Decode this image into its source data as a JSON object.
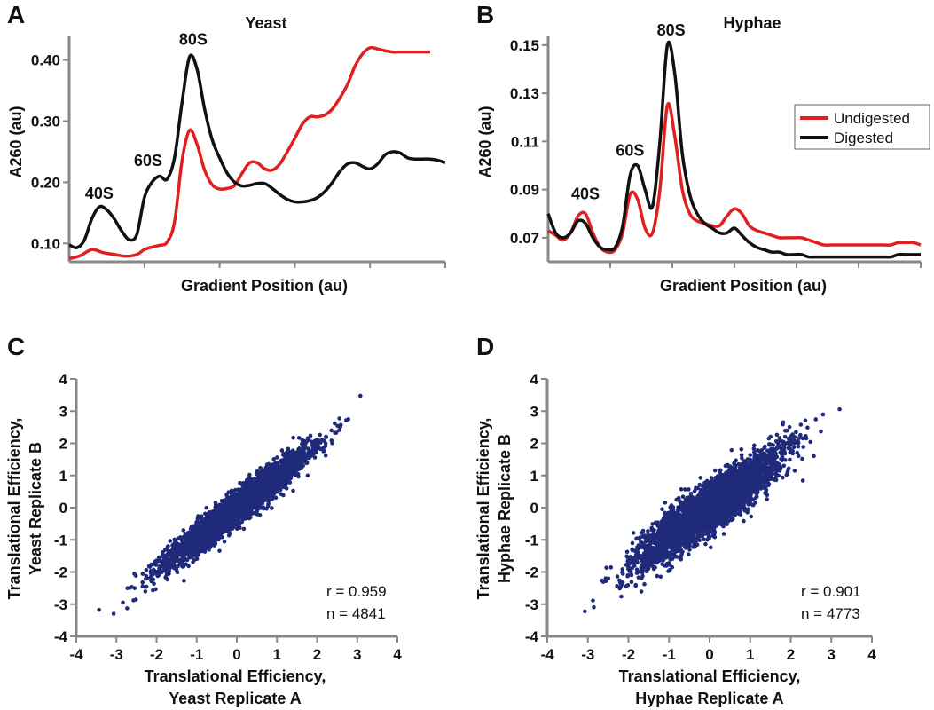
{
  "colors": {
    "undigested": "#e02020",
    "digested": "#111111",
    "scatter": "#1f2a7a",
    "axis": "#888888"
  },
  "chart_data": [
    {
      "panel": "A",
      "type": "line",
      "title": "Yeast",
      "xlabel": "Gradient Position (au)",
      "ylabel": "A260 (au)",
      "ylim": [
        0.07,
        0.44
      ],
      "yticks": [
        "0.10",
        "0.20",
        "0.30",
        "0.40"
      ],
      "ytick_values": [
        0.1,
        0.2,
        0.3,
        0.4
      ],
      "xlim": [
        0,
        1
      ],
      "xticks_count": 5,
      "peaks": [
        {
          "label": "40S",
          "x": 0.08,
          "y": 0.173
        },
        {
          "label": "60S",
          "x": 0.21,
          "y": 0.227
        },
        {
          "label": "80S",
          "x": 0.33,
          "y": 0.425
        }
      ],
      "series": [
        {
          "name": "Undigested",
          "x": [
            0,
            0.03,
            0.06,
            0.09,
            0.12,
            0.15,
            0.18,
            0.2,
            0.22,
            0.24,
            0.26,
            0.28,
            0.3,
            0.32,
            0.34,
            0.36,
            0.38,
            0.4,
            0.42,
            0.44,
            0.46,
            0.48,
            0.5,
            0.52,
            0.54,
            0.56,
            0.58,
            0.6,
            0.62,
            0.64,
            0.66,
            0.68,
            0.7,
            0.72,
            0.74,
            0.76,
            0.78,
            0.8,
            0.82,
            0.84,
            0.86,
            0.88,
            0.9,
            0.92,
            0.94,
            0.96
          ],
          "values": [
            0.075,
            0.08,
            0.09,
            0.085,
            0.082,
            0.079,
            0.082,
            0.09,
            0.094,
            0.097,
            0.102,
            0.135,
            0.235,
            0.285,
            0.262,
            0.22,
            0.196,
            0.189,
            0.19,
            0.195,
            0.215,
            0.232,
            0.232,
            0.222,
            0.22,
            0.23,
            0.25,
            0.272,
            0.295,
            0.307,
            0.307,
            0.31,
            0.32,
            0.338,
            0.36,
            0.39,
            0.41,
            0.42,
            0.418,
            0.415,
            0.413,
            0.413,
            0.413,
            0.413,
            0.413,
            0.413
          ]
        },
        {
          "name": "Digested",
          "x": [
            0,
            0.02,
            0.04,
            0.06,
            0.08,
            0.1,
            0.12,
            0.14,
            0.16,
            0.18,
            0.2,
            0.22,
            0.24,
            0.26,
            0.28,
            0.3,
            0.32,
            0.34,
            0.36,
            0.38,
            0.4,
            0.42,
            0.44,
            0.46,
            0.48,
            0.5,
            0.52,
            0.54,
            0.56,
            0.58,
            0.6,
            0.62,
            0.64,
            0.66,
            0.68,
            0.7,
            0.72,
            0.74,
            0.76,
            0.78,
            0.8,
            0.82,
            0.84,
            0.86,
            0.88,
            0.9,
            0.92,
            0.94,
            0.96,
            0.98,
            1.0
          ],
          "values": [
            0.098,
            0.093,
            0.105,
            0.14,
            0.16,
            0.155,
            0.14,
            0.12,
            0.106,
            0.115,
            0.175,
            0.2,
            0.21,
            0.205,
            0.24,
            0.33,
            0.405,
            0.385,
            0.32,
            0.27,
            0.24,
            0.215,
            0.2,
            0.194,
            0.195,
            0.198,
            0.198,
            0.19,
            0.18,
            0.172,
            0.168,
            0.168,
            0.17,
            0.175,
            0.185,
            0.2,
            0.218,
            0.23,
            0.232,
            0.226,
            0.222,
            0.23,
            0.245,
            0.25,
            0.248,
            0.24,
            0.238,
            0.238,
            0.238,
            0.236,
            0.232
          ]
        }
      ]
    },
    {
      "panel": "B",
      "type": "line",
      "title": "Hyphae",
      "xlabel": "Gradient Position (au)",
      "ylabel": "A260 (au)",
      "ylim": [
        0.06,
        0.154
      ],
      "yticks": [
        "0.07",
        "0.09",
        "0.11",
        "0.13",
        "0.15"
      ],
      "ytick_values": [
        0.07,
        0.09,
        0.11,
        0.13,
        0.15
      ],
      "xlim": [
        0,
        1
      ],
      "xticks_count": 6,
      "legend": {
        "position": "top-right",
        "entries": [
          "Undigested",
          "Digested"
        ]
      },
      "peaks": [
        {
          "label": "40S",
          "x": 0.1,
          "y": 0.086
        },
        {
          "label": "60S",
          "x": 0.22,
          "y": 0.104
        },
        {
          "label": "80S",
          "x": 0.33,
          "y": 0.154
        }
      ],
      "series": [
        {
          "name": "Undigested",
          "x": [
            0,
            0.02,
            0.04,
            0.06,
            0.08,
            0.1,
            0.12,
            0.14,
            0.16,
            0.18,
            0.2,
            0.22,
            0.24,
            0.26,
            0.28,
            0.3,
            0.32,
            0.34,
            0.36,
            0.38,
            0.4,
            0.42,
            0.44,
            0.46,
            0.48,
            0.5,
            0.52,
            0.54,
            0.56,
            0.58,
            0.6,
            0.62,
            0.64,
            0.66,
            0.68,
            0.7,
            0.72,
            0.74,
            0.76,
            0.78,
            0.8,
            0.82,
            0.84,
            0.86,
            0.88,
            0.9,
            0.92,
            0.94,
            0.96,
            0.98,
            1.0
          ],
          "values": [
            0.073,
            0.071,
            0.069,
            0.072,
            0.079,
            0.08,
            0.072,
            0.066,
            0.064,
            0.065,
            0.072,
            0.088,
            0.086,
            0.074,
            0.072,
            0.09,
            0.125,
            0.112,
            0.09,
            0.08,
            0.077,
            0.076,
            0.075,
            0.075,
            0.079,
            0.082,
            0.08,
            0.075,
            0.073,
            0.072,
            0.071,
            0.07,
            0.07,
            0.07,
            0.07,
            0.069,
            0.068,
            0.067,
            0.067,
            0.067,
            0.067,
            0.067,
            0.067,
            0.067,
            0.067,
            0.067,
            0.067,
            0.068,
            0.068,
            0.068,
            0.067
          ]
        },
        {
          "name": "Digested",
          "x": [
            0,
            0.02,
            0.04,
            0.06,
            0.08,
            0.1,
            0.12,
            0.14,
            0.16,
            0.18,
            0.2,
            0.22,
            0.24,
            0.26,
            0.28,
            0.3,
            0.32,
            0.34,
            0.36,
            0.38,
            0.4,
            0.42,
            0.44,
            0.46,
            0.48,
            0.5,
            0.52,
            0.54,
            0.56,
            0.58,
            0.6,
            0.62,
            0.64,
            0.66,
            0.68,
            0.7,
            0.72,
            0.74,
            0.76,
            0.78,
            0.8,
            0.82,
            0.84,
            0.86,
            0.88,
            0.9,
            0.92,
            0.94,
            0.96,
            0.98,
            1.0
          ],
          "values": [
            0.08,
            0.072,
            0.07,
            0.072,
            0.077,
            0.076,
            0.07,
            0.066,
            0.065,
            0.066,
            0.075,
            0.096,
            0.1,
            0.09,
            0.083,
            0.11,
            0.15,
            0.138,
            0.105,
            0.088,
            0.08,
            0.076,
            0.074,
            0.072,
            0.072,
            0.074,
            0.071,
            0.068,
            0.066,
            0.065,
            0.064,
            0.064,
            0.063,
            0.063,
            0.063,
            0.062,
            0.062,
            0.062,
            0.062,
            0.062,
            0.062,
            0.062,
            0.062,
            0.062,
            0.062,
            0.062,
            0.062,
            0.063,
            0.063,
            0.063,
            0.063
          ]
        }
      ]
    },
    {
      "panel": "C",
      "type": "scatter",
      "xlabel": [
        "Translational Efficiency,",
        "Yeast Replicate A"
      ],
      "ylabel": [
        "Translational Efficiency,",
        "Yeast Replicate B"
      ],
      "xlim": [
        -4,
        4
      ],
      "ylim": [
        -4,
        4
      ],
      "ticks": [
        "-4",
        "-3",
        "-2",
        "-1",
        "0",
        "1",
        "2",
        "3",
        "4"
      ],
      "tick_values": [
        -4,
        -3,
        -2,
        -1,
        0,
        1,
        2,
        3,
        4
      ],
      "annotations": [
        "r = 0.959",
        "n = 4841"
      ],
      "r": 0.959,
      "n": 4841
    },
    {
      "panel": "D",
      "type": "scatter",
      "xlabel": [
        "Translational Efficiency,",
        "Hyphae Replicate A"
      ],
      "ylabel": [
        "Translational Efficiency,",
        "Hyphae Replicate B"
      ],
      "xlim": [
        -4,
        4
      ],
      "ylim": [
        -4,
        4
      ],
      "ticks": [
        "-4",
        "-3",
        "-2",
        "-1",
        "0",
        "1",
        "2",
        "3",
        "4"
      ],
      "tick_values": [
        -4,
        -3,
        -2,
        -1,
        0,
        1,
        2,
        3,
        4
      ],
      "annotations": [
        "r = 0.901",
        "n = 4773"
      ],
      "r": 0.901,
      "n": 4773
    }
  ]
}
